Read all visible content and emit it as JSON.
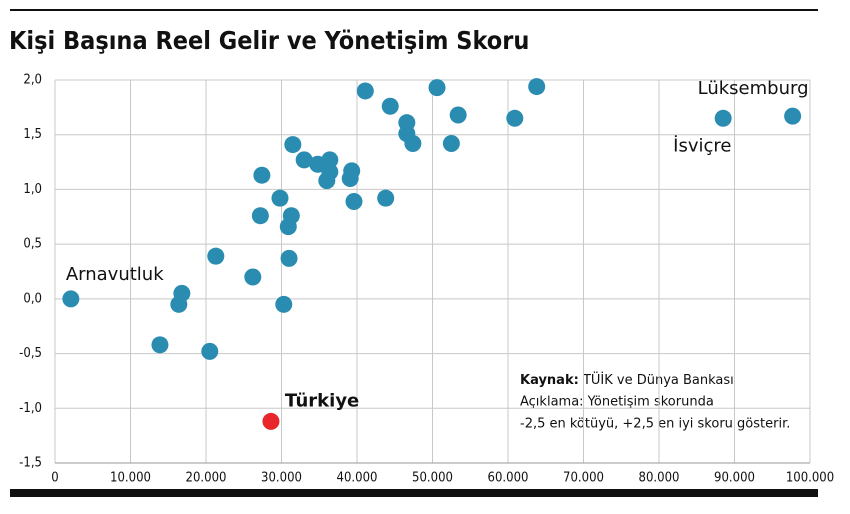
{
  "chart_data": {
    "type": "scatter",
    "title": "Kişi Başına Reel Gelir ve Yönetişim Skoru",
    "source_label": "Kaynak:",
    "source": "TÜİK ve Dünya Bankası",
    "notes": [
      "Açıklama: Yönetişim skorunda",
      "-2,5 en kötüyü, +2,5 en iyi skoru gösterir."
    ],
    "xlim": [
      0,
      100000
    ],
    "xticks": [
      0,
      {
        "value": 10000,
        "label": "10.000"
      },
      {
        "value": 20000,
        "label": "20.000"
      },
      {
        "value": 30000,
        "label": "30.000"
      },
      {
        "value": 40000,
        "label": "40.000"
      },
      {
        "value": 50000,
        "label": "50.000"
      },
      {
        "value": 60000,
        "label": "60.000"
      },
      {
        "value": 70000,
        "label": "70.000"
      },
      {
        "value": 80000,
        "label": "80.000"
      },
      {
        "value": 90000,
        "label": "90.000"
      },
      {
        "value": 100000,
        "label": "100.000"
      }
    ],
    "ylim": [
      -1.5,
      2
    ],
    "yticks": [
      {
        "value": -1.5,
        "label": "-1,5"
      },
      {
        "value": -1,
        "label": "-1,0"
      },
      {
        "value": -0.5,
        "label": "-0,5"
      },
      {
        "value": 0,
        "label": "0,0"
      },
      {
        "value": 0.5,
        "label": "0,5"
      },
      {
        "value": 1,
        "label": "1,0"
      },
      {
        "value": 1.5,
        "label": "1,5"
      },
      {
        "value": 2,
        "label": "2,0"
      }
    ],
    "grid": true,
    "series": [
      {
        "color": "#2a8cb0",
        "x": [
          16800,
          16400,
          13900,
          20500,
          21300,
          26200,
          30300,
          31000,
          30900,
          31300,
          27200,
          29800,
          27400,
          31500,
          33000,
          34800,
          36400,
          36400,
          36000,
          39100,
          39300,
          39600,
          43800,
          41100,
          44400,
          46600,
          46600,
          47400,
          50600,
          53400,
          52500,
          60900,
          63800
        ],
        "values": [
          0.05,
          -0.05,
          -0.42,
          -0.48,
          0.39,
          0.2,
          -0.05,
          0.37,
          0.66,
          0.76,
          0.76,
          0.92,
          1.13,
          1.41,
          1.27,
          1.23,
          1.27,
          1.16,
          1.08,
          1.1,
          1.17,
          0.89,
          0.92,
          1.9,
          1.76,
          1.61,
          1.51,
          1.42,
          1.93,
          1.68,
          1.42,
          1.65,
          1.94
        ]
      },
      {
        "name": "Arnavutluk",
        "color": "#2a8cb0",
        "x": [
          2100
        ],
        "values": [
          0
        ]
      },
      {
        "name": "İsviçre",
        "color": "#2a8cb0",
        "x": [
          88500
        ],
        "values": [
          1.65
        ]
      },
      {
        "name": "Lüksemburg",
        "color": "#2a8cb0",
        "x": [
          97700
        ],
        "values": [
          1.67
        ]
      },
      {
        "name": "Türkiye",
        "color": "#e8262b",
        "x": [
          28600
        ],
        "values": [
          -1.12
        ]
      }
    ]
  }
}
